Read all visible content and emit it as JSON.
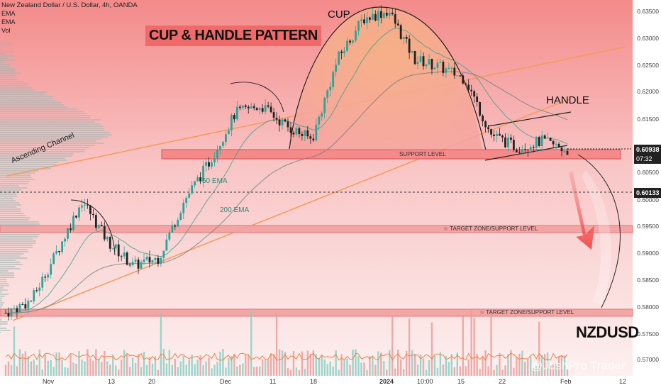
{
  "header": {
    "title": "New Zealand Dollar / U.S. Dollar, 4h, OANDA",
    "indicators": [
      "EMA",
      "EMA",
      "Vol"
    ]
  },
  "annotations": {
    "main_title": "CUP & HANDLE PATTERN",
    "cup": "CUP",
    "handle": "HANDLE",
    "ascending_channel": "Ascending Channel",
    "ema50": "50 EMA",
    "ema200": "200 EMA",
    "support_level": "SUPPORT LEVEL",
    "target_zone_1": "TARGET ZONE/SUPPORT LEVEL",
    "target_zone_2": "TARGET ZONE/SUPPORT LEVEL",
    "symbol": "NZDUSD",
    "watermark": "@JoshPro Trader"
  },
  "price_axis": {
    "ticks": [
      "0.63500",
      "0.63000",
      "0.62500",
      "0.62000",
      "0.61500",
      "0.60500",
      "0.60000",
      "0.59500",
      "0.59000",
      "0.58500",
      "0.58000",
      "0.57500",
      "0.57000"
    ],
    "current_price": "0.60938",
    "countdown": "07:32",
    "crosshair_price": "0.60133"
  },
  "time_axis": {
    "ticks": [
      "Nov",
      "13",
      "20",
      "Dec",
      "11",
      "18",
      "2024",
      "10:00",
      "15",
      "22",
      "Feb",
      "12"
    ]
  },
  "colors": {
    "background": "#fbe4e4",
    "up_candle": "#26a69a",
    "down_candle": "#222222",
    "zone": "#f4a0a0",
    "cup_fill": "#f7b98a",
    "channel": "#f59b5a"
  },
  "chart_data": {
    "type": "candlestick",
    "symbol": "NZDUSD",
    "timeframe": "4h",
    "x": [
      "Nov",
      "13",
      "20",
      "Dec",
      "11",
      "18",
      "2024",
      "10:00",
      "15",
      "22",
      "Feb",
      "12"
    ],
    "ylim": [
      0.5675,
      0.6375
    ],
    "approx_close_path": [
      0.5792,
      0.5815,
      0.5905,
      0.6002,
      0.5925,
      0.588,
      0.5895,
      0.6002,
      0.6075,
      0.6165,
      0.6178,
      0.614,
      0.6115,
      0.6265,
      0.634,
      0.6355,
      0.6265,
      0.625,
      0.6228,
      0.6125,
      0.61,
      0.6112,
      0.6095
    ],
    "levels": {
      "support": 0.609,
      "target_zone_1": 0.595,
      "target_zone_2": 0.579,
      "current": 0.60938,
      "crosshair": 0.60133
    }
  }
}
